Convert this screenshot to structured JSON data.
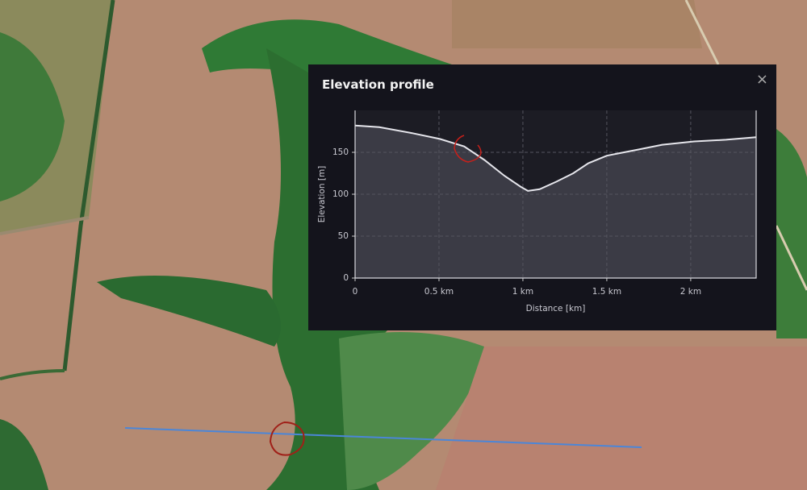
{
  "panel": {
    "title": "Elevation profile",
    "close": "×"
  },
  "chart_data": {
    "type": "area",
    "x_label": "Distance [km]",
    "y_label": "Elevation [m]",
    "x": [
      0,
      0.144,
      0.337,
      0.505,
      0.65,
      0.77,
      0.89,
      0.986,
      1.03,
      1.1,
      1.2,
      1.3,
      1.39,
      1.5,
      1.68,
      1.83,
      2.02,
      2.21,
      2.39
    ],
    "values": [
      182,
      180,
      173,
      166,
      157,
      141,
      122,
      109,
      104,
      106,
      115,
      125,
      137,
      146,
      153,
      159,
      163,
      165,
      168
    ],
    "color": "#e6e6ec",
    "area_color": "#3b3b45",
    "xlim": [
      0,
      2.39
    ],
    "ylim": [
      0,
      200
    ],
    "xticks": [
      0,
      {
        "value": 0.5,
        "label": "0.5 km"
      },
      {
        "value": 1,
        "label": "1 km"
      },
      {
        "value": 1.5,
        "label": "1.5 km"
      },
      {
        "value": 2,
        "label": "2 km"
      }
    ],
    "yticks": [
      0,
      50,
      100,
      150
    ],
    "grid": true
  }
}
